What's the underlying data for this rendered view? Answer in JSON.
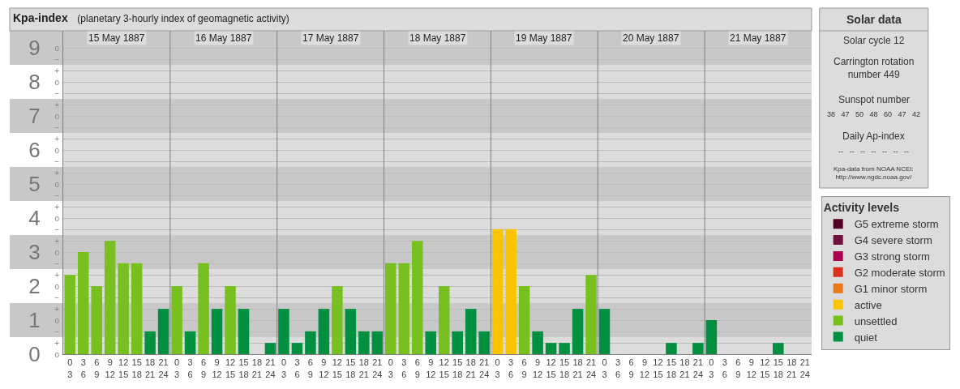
{
  "chart_data": [
    {
      "type": "bar",
      "title": "Kpa-index",
      "subtitle": "(planetary 3-hourly index of geomagnetic activity)",
      "categories": [
        "0\n3",
        "3\n6",
        "6\n9",
        "9\n12",
        "12\n15",
        "15\n18",
        "18\n21",
        "21\n24",
        "0\n3",
        "3\n6",
        "6\n9",
        "9\n12",
        "12\n15",
        "15\n18",
        "18\n21",
        "21\n24",
        "0\n3",
        "3\n6",
        "6\n9",
        "9\n12",
        "12\n15",
        "15\n18",
        "18\n21",
        "21\n24",
        "0\n3",
        "3\n6",
        "6\n9",
        "9\n12",
        "12\n15",
        "15\n18",
        "18\n21",
        "21\n24",
        "0\n3",
        "3\n6",
        "6\n9",
        "9\n12",
        "12\n15",
        "15\n18",
        "18\n21",
        "21\n24",
        "0\n3",
        "3\n6",
        "6\n9",
        "9\n12",
        "12\n15",
        "15\n18",
        "18\n21",
        "21\n24",
        "0\n3",
        "3\n6",
        "6\n9",
        "9\n12",
        "12\n15",
        "15\n18",
        "18\n21",
        "21\n24"
      ],
      "legend_title": "Activity levels",
      "series": [
        {
          "name": "G5 extreme storm",
          "color": "#500024",
          "values": [
            null,
            null,
            null,
            null,
            null,
            null,
            null,
            null,
            null,
            null,
            null,
            null,
            null,
            null,
            null,
            null,
            null,
            null,
            null,
            null,
            null,
            null,
            null,
            null,
            null,
            null,
            null,
            null,
            null,
            null,
            null,
            null,
            null,
            null,
            null,
            null,
            null,
            null,
            null,
            null,
            null,
            null,
            null,
            null,
            null,
            null,
            null,
            null,
            null,
            null,
            null,
            null,
            null,
            null,
            null,
            null
          ]
        },
        {
          "name": "G4 severe storm",
          "color": "#70103c",
          "values": [
            null,
            null,
            null,
            null,
            null,
            null,
            null,
            null,
            null,
            null,
            null,
            null,
            null,
            null,
            null,
            null,
            null,
            null,
            null,
            null,
            null,
            null,
            null,
            null,
            null,
            null,
            null,
            null,
            null,
            null,
            null,
            null,
            null,
            null,
            null,
            null,
            null,
            null,
            null,
            null,
            null,
            null,
            null,
            null,
            null,
            null,
            null,
            null,
            null,
            null,
            null,
            null,
            null,
            null,
            null,
            null
          ]
        },
        {
          "name": "G3 strong storm",
          "color": "#a8004c",
          "values": [
            null,
            null,
            null,
            null,
            null,
            null,
            null,
            null,
            null,
            null,
            null,
            null,
            null,
            null,
            null,
            null,
            null,
            null,
            null,
            null,
            null,
            null,
            null,
            null,
            null,
            null,
            null,
            null,
            null,
            null,
            null,
            null,
            null,
            null,
            null,
            null,
            null,
            null,
            null,
            null,
            null,
            null,
            null,
            null,
            null,
            null,
            null,
            null,
            null,
            null,
            null,
            null,
            null,
            null,
            null,
            null
          ]
        },
        {
          "name": "G2 moderate storm",
          "color": "#d8301c",
          "values": [
            null,
            null,
            null,
            null,
            null,
            null,
            null,
            null,
            null,
            null,
            null,
            null,
            null,
            null,
            null,
            null,
            null,
            null,
            null,
            null,
            null,
            null,
            null,
            null,
            null,
            null,
            null,
            null,
            null,
            null,
            null,
            null,
            null,
            null,
            null,
            null,
            null,
            null,
            null,
            null,
            null,
            null,
            null,
            null,
            null,
            null,
            null,
            null,
            null,
            null,
            null,
            null,
            null,
            null,
            null,
            null
          ]
        },
        {
          "name": "G1 minor storm",
          "color": "#e87818",
          "values": [
            null,
            null,
            null,
            null,
            null,
            null,
            null,
            null,
            null,
            null,
            null,
            null,
            null,
            null,
            null,
            null,
            null,
            null,
            null,
            null,
            null,
            null,
            null,
            null,
            null,
            null,
            null,
            null,
            null,
            null,
            null,
            null,
            null,
            null,
            null,
            null,
            null,
            null,
            null,
            null,
            null,
            null,
            null,
            null,
            null,
            null,
            null,
            null,
            null,
            null,
            null,
            null,
            null,
            null,
            null,
            null
          ]
        },
        {
          "name": "active",
          "color": "#f8c400",
          "values": [
            null,
            null,
            null,
            null,
            null,
            null,
            null,
            null,
            null,
            null,
            null,
            null,
            null,
            null,
            null,
            null,
            null,
            null,
            null,
            null,
            null,
            null,
            null,
            null,
            null,
            null,
            null,
            null,
            null,
            null,
            null,
            null,
            3.67,
            3.67,
            null,
            null,
            null,
            null,
            null,
            null,
            null,
            null,
            null,
            null,
            null,
            null,
            null,
            null,
            null,
            null,
            null,
            null,
            null,
            null,
            null,
            null
          ]
        },
        {
          "name": "unsettled",
          "color": "#78c020",
          "values": [
            2.33,
            3,
            2,
            3.33,
            2.67,
            2.67,
            null,
            null,
            2,
            null,
            2.67,
            null,
            2,
            null,
            null,
            null,
            null,
            null,
            null,
            null,
            2,
            null,
            null,
            null,
            2.67,
            2.67,
            3.33,
            null,
            2,
            null,
            null,
            null,
            null,
            null,
            2,
            null,
            null,
            null,
            null,
            2.33,
            null,
            null,
            null,
            null,
            null,
            null,
            null,
            null,
            null,
            null,
            null,
            null,
            null,
            null,
            null,
            null
          ]
        },
        {
          "name": "quiet",
          "color": "#009040",
          "values": [
            null,
            null,
            null,
            null,
            null,
            null,
            0.67,
            1.33,
            null,
            0.67,
            null,
            1.33,
            null,
            1.33,
            0,
            0.33,
            1.33,
            0.33,
            0.67,
            1.33,
            null,
            1.33,
            0.67,
            0.67,
            null,
            null,
            null,
            0.67,
            null,
            0.67,
            1.33,
            0.67,
            null,
            null,
            null,
            0.67,
            0.33,
            0.33,
            1.33,
            null,
            1.33,
            0,
            0,
            0,
            0,
            0.33,
            0,
            0.33,
            1,
            0,
            0,
            0,
            0,
            0.33,
            0,
            0
          ]
        }
      ],
      "ylim": [
        0,
        9.5
      ],
      "yticks": [
        0,
        1,
        2,
        3,
        4,
        5,
        6,
        7,
        8,
        9
      ],
      "y2_categories": [
        "o",
        "−",
        "+",
        "o",
        "−",
        "+",
        "o",
        "−",
        "+",
        "o",
        "−",
        "+",
        "o",
        "−",
        "+",
        "o",
        "−",
        "+",
        "o",
        "−",
        "+",
        "o",
        "−",
        "+",
        "o",
        "−",
        "+",
        "o"
      ],
      "bands": [
        {
          "axis": "y",
          "from": 0.5,
          "to": 1.5,
          "color": "#c8c8c8"
        },
        {
          "axis": "y",
          "from": 2.5,
          "to": 3.5,
          "color": "#c8c8c8"
        },
        {
          "axis": "y",
          "from": 4.5,
          "to": 5.5,
          "color": "#c8c8c8"
        },
        {
          "axis": "y",
          "from": 6.5,
          "to": 7.5,
          "color": "#c8c8c8"
        },
        {
          "axis": "y",
          "from": 8.5,
          "to": 9.5,
          "color": "#c8c8c8"
        }
      ],
      "grid": "y",
      "legend": "right",
      "annotations": [
        "15 May 1887",
        "16 May 1887",
        "17 May 1887",
        "18 May 1887",
        "19 May 1887",
        "20 May 1887",
        "21 May 1887"
      ]
    },
    {
      "type": "other",
      "title": "Solar data",
      "annotations": [
        "Solar cycle 12",
        "Carrington rotation\nnumber 449",
        "Sunspot number",
        "38   47   50   48   60   47   42",
        "Daily Ap-index",
        "--   --   --   --   --   --   --",
        "Kpa-data from NOAA NCEI:\nhttp://www.ngdc.noaa.gov/"
      ]
    }
  ]
}
